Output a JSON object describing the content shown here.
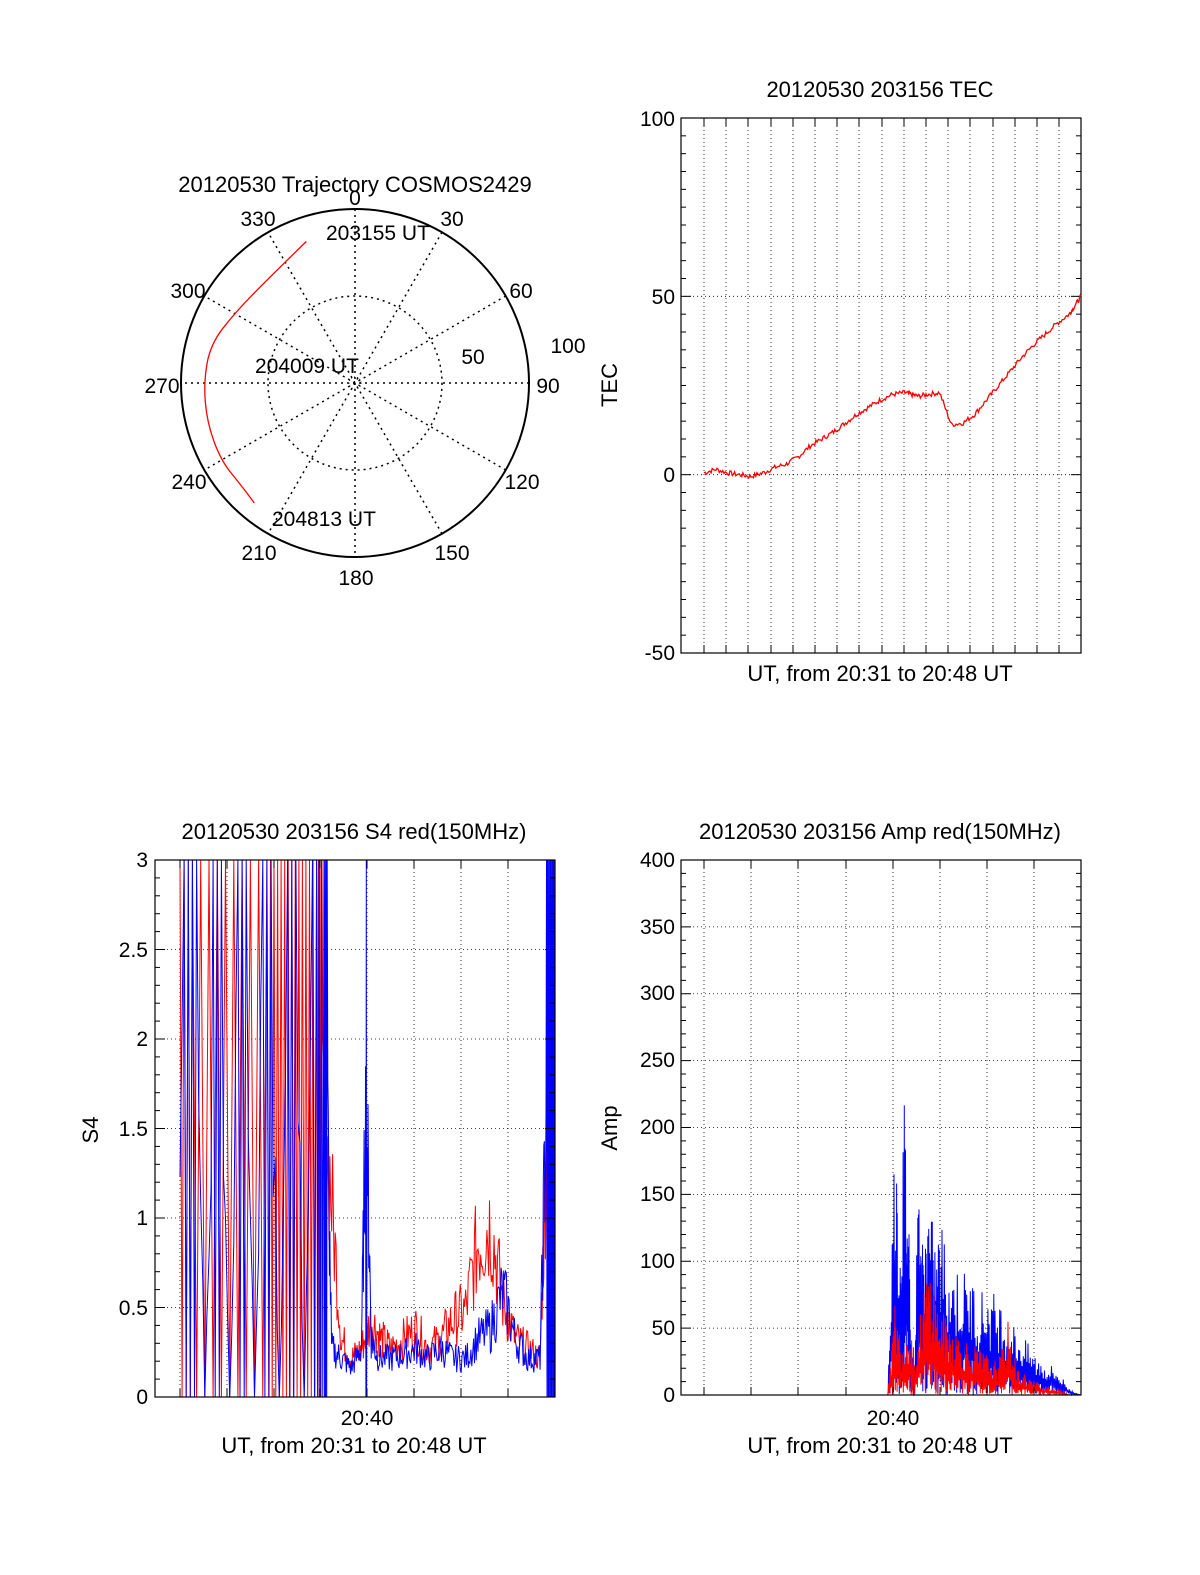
{
  "colors": {
    "red": "#ff0000",
    "blue": "#0000ff",
    "axis": "#000000"
  },
  "chart_data": [
    {
      "type": "polar-trajectory",
      "title": "20120530 Trajectory COSMOS2429",
      "azimuth_labels": [
        "0",
        "30",
        "60",
        "90",
        "120",
        "150",
        "180",
        "210",
        "240",
        "270",
        "300",
        "330"
      ],
      "elevation_ring_labels": [
        "50",
        "100"
      ],
      "annotations": [
        "203155 UT",
        "204009 UT",
        "204813 UT"
      ],
      "trajectory": {
        "color": "red",
        "points_az_zen": [
          [
            341,
            86
          ],
          [
            320,
            78
          ],
          [
            300,
            80
          ],
          [
            285,
            86
          ],
          [
            270,
            87
          ],
          [
            255,
            88
          ],
          [
            240,
            89
          ],
          [
            228,
            88
          ],
          [
            220,
            90
          ]
        ]
      }
    },
    {
      "type": "line",
      "title": "20120530 203156 TEC",
      "xlabel": "UT, from 20:31 to 20:48 UT",
      "ylabel": "TEC",
      "ylim": [
        -50,
        100
      ],
      "yticks": [
        "-50",
        "0",
        "50",
        "100"
      ],
      "xlim_minutes": [
        20.52,
        20.81
      ],
      "grid": true,
      "series": [
        {
          "color": "red",
          "x_minutes": [
            31.5,
            32.0,
            32.5,
            33.0,
            33.5,
            34.0,
            34.5,
            35.0,
            35.5,
            36.0,
            36.5,
            37.0,
            37.5,
            38.0,
            38.5,
            39.0,
            39.5,
            40.0,
            40.3,
            40.6,
            41.0,
            41.5,
            42.0,
            42.5,
            43.0,
            43.5,
            44.0,
            44.5,
            45.0,
            45.5,
            46.0,
            46.5,
            47.0,
            47.2,
            47.5
          ],
          "values": [
            0.5,
            1.5,
            0.5,
            0,
            -0.5,
            0.5,
            2,
            3,
            5,
            8,
            10,
            12,
            14.5,
            17,
            19,
            21,
            22.5,
            23,
            22.5,
            22,
            22.5,
            23,
            14,
            14.5,
            17,
            21,
            25,
            29,
            33,
            36.5,
            39.5,
            42.5,
            45,
            47,
            50
          ]
        }
      ]
    },
    {
      "type": "line",
      "title": "20120530 203156 S4 red(150MHz)",
      "xlabel": "UT, from 20:31 to 20:48 UT",
      "ylabel": "S4",
      "ylim": [
        0,
        3
      ],
      "yticks": [
        "0",
        "0.5",
        "1",
        "1.5",
        "2",
        "2.5",
        "3"
      ],
      "xtick_labels": [
        "20:40"
      ],
      "grid": true,
      "series": [
        {
          "color": "blue",
          "x_minutes": [
            32.5,
            33.0,
            33.5,
            34.0,
            34.5,
            35.0,
            35.5,
            36.0,
            36.5,
            37.0,
            37.5,
            38.0,
            38.3,
            38.6,
            39.0,
            39.4,
            39.8,
            40.0,
            40.2,
            40.5,
            41.0,
            41.5,
            42.0,
            42.5,
            43.0,
            43.5,
            44.0,
            44.5,
            45.0,
            45.5,
            46.0,
            46.5,
            47.0,
            47.3,
            47.6
          ],
          "values": [
            1.2,
            3.0,
            0.0,
            3.0,
            0.0,
            3.0,
            0.0,
            3.0,
            0.0,
            3.0,
            0.0,
            3.0,
            2.5,
            0.25,
            0.2,
            0.15,
            0.25,
            1.6,
            0.3,
            0.2,
            0.2,
            0.22,
            0.25,
            0.2,
            0.25,
            0.2,
            0.2,
            0.3,
            0.35,
            0.55,
            0.3,
            0.2,
            0.2,
            1.8,
            2.3
          ]
        },
        {
          "color": "red",
          "x_minutes": [
            32.5,
            33.0,
            34.0,
            35.0,
            36.0,
            37.0,
            38.0,
            38.5,
            39.0,
            39.4,
            39.8,
            40.2,
            40.6,
            41.0,
            41.5,
            42.0,
            42.5,
            43.0,
            43.5,
            44.0,
            44.5,
            45.0,
            45.5,
            46.0,
            46.5,
            47.0,
            47.3,
            47.6
          ],
          "values": [
            2.2,
            2.8,
            2.2,
            2.6,
            2.5,
            2.4,
            1.8,
            1.2,
            0.3,
            0.2,
            0.25,
            0.4,
            0.3,
            0.25,
            0.3,
            0.35,
            0.25,
            0.3,
            0.4,
            0.45,
            0.8,
            0.9,
            0.5,
            0.3,
            0.25,
            0.2,
            1.5,
            2.8
          ]
        }
      ]
    },
    {
      "type": "line",
      "title": "20120530 203156 Amp red(150MHz)",
      "xlabel": "UT, from 20:31 to 20:48 UT",
      "ylabel": "Amp",
      "ylim": [
        0,
        400
      ],
      "yticks": [
        "0",
        "50",
        "100",
        "150",
        "200",
        "250",
        "300",
        "350",
        "400"
      ],
      "xtick_labels": [
        "20:40"
      ],
      "grid": true,
      "series": [
        {
          "color": "blue",
          "x_minutes": [
            31.5,
            32.5,
            33.5,
            34.5,
            35.5,
            36.5,
            37.5,
            38.5,
            39.3,
            39.6,
            39.8,
            40.0,
            40.2,
            40.4,
            40.6,
            40.8,
            41.0,
            41.3,
            41.6,
            42.0,
            42.4,
            42.8,
            43.2,
            43.6,
            44.0,
            44.4,
            44.8,
            45.2,
            45.6,
            46.0,
            46.5,
            47.0,
            47.5
          ],
          "values": [
            0,
            0,
            0,
            0,
            0,
            0,
            0,
            0,
            0,
            210,
            120,
            225,
            140,
            0,
            175,
            110,
            150,
            120,
            130,
            100,
            95,
            90,
            80,
            80,
            75,
            60,
            50,
            40,
            30,
            25,
            20,
            5,
            0
          ]
        },
        {
          "color": "red",
          "x_minutes": [
            39.3,
            39.6,
            39.9,
            40.2,
            40.5,
            40.8,
            41.1,
            41.4,
            41.7,
            42.0,
            42.4,
            42.8,
            43.2,
            43.6,
            44.0,
            44.4,
            44.8,
            45.2,
            45.6,
            46.0,
            46.5,
            47.0
          ],
          "values": [
            0,
            70,
            40,
            60,
            30,
            80,
            100,
            70,
            60,
            55,
            45,
            40,
            35,
            30,
            25,
            55,
            20,
            15,
            10,
            8,
            5,
            0
          ]
        }
      ]
    }
  ]
}
